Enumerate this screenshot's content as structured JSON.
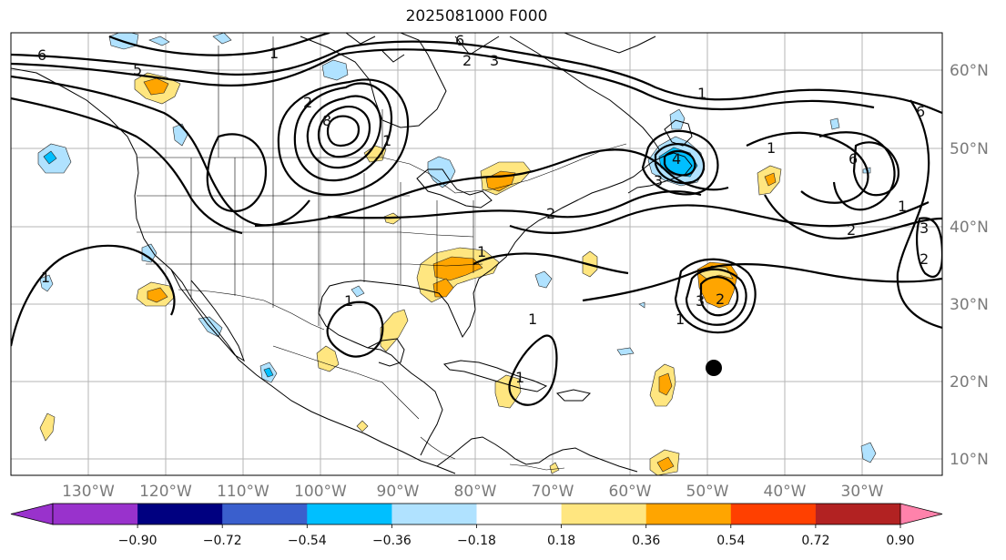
{
  "title": "2025081000 F000",
  "map": {
    "lon_labels": [
      "130°W",
      "120°W",
      "110°W",
      "100°W",
      "90°W",
      "80°W",
      "70°W",
      "60°W",
      "50°W",
      "40°W",
      "30°W"
    ],
    "lat_labels": [
      "60°N",
      "50°N",
      "40°N",
      "30°N",
      "20°N",
      "10°N"
    ],
    "contour_labels": [
      "6",
      "1",
      "2",
      "6",
      "8",
      "1",
      "1",
      "6",
      "2",
      "3",
      "1",
      "4",
      "3",
      "2",
      "1",
      "6",
      "5",
      "1",
      "2",
      "2",
      "1",
      "3",
      "3",
      "1",
      "1",
      "1",
      "2",
      "1"
    ]
  },
  "colorbar": {
    "ticks": [
      "−0.90",
      "−0.72",
      "−0.54",
      "−0.36",
      "−0.18",
      "0.18",
      "0.36",
      "0.54",
      "0.72",
      "0.90"
    ],
    "colors": {
      "below": "#9932cc",
      "bins": [
        "#9932cc",
        "#000080",
        "#3a5fcd",
        "#00bfff",
        "#b0e2ff",
        "#ffffff",
        "#ffe680",
        "#ffa500",
        "#ff4000",
        "#b22222"
      ],
      "above": "#ff82ab"
    }
  },
  "colors": {
    "positive_light": "#ffe680",
    "positive_mid": "#ffa500",
    "negative_light": "#b0e2ff",
    "negative_mid": "#00bfff",
    "contour": "#000000",
    "grid": "#b5b5b5",
    "axis_label": "#7a7a7a"
  }
}
